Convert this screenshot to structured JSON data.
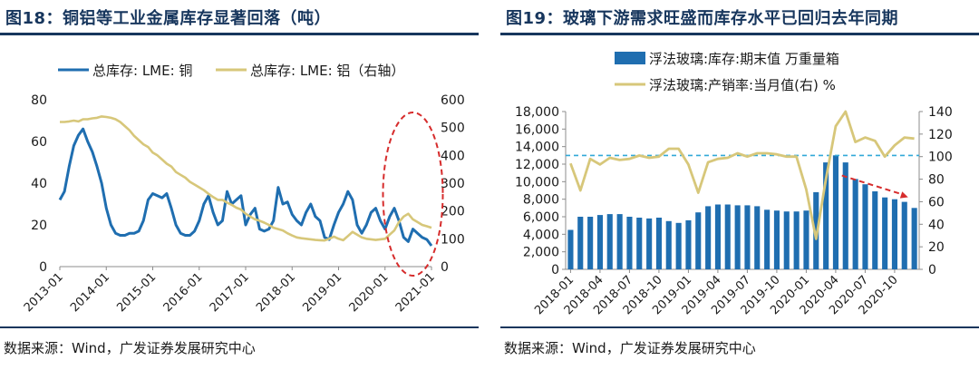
{
  "left": {
    "title": "图18：铜铝等工业金属库存显著回落（吨）",
    "source": "数据来源：Wind，广发证券发展研究中心"
  },
  "right": {
    "title": "图19：玻璃下游需求旺盛而库存水平已回归去年同期",
    "source": "数据来源：Wind，广发证券发展研究中心"
  },
  "colors": {
    "navy": "#17365d",
    "blue": "#1f6eb0",
    "gold": "#d7c77a",
    "red": "#d62c2c",
    "dash": "#31a9d8"
  },
  "chart_data": [
    {
      "type": "line",
      "title": "",
      "x_ticks": [
        "2013-01",
        "2014-01",
        "2015-01",
        "2016-01",
        "2017-01",
        "2018-01",
        "2019-01",
        "2020-01",
        "2021-01"
      ],
      "y_left": {
        "lim": [
          0,
          80
        ],
        "ticks": [
          "0",
          "20",
          "40",
          "60",
          "80"
        ]
      },
      "y_right": {
        "lim": [
          0,
          600
        ],
        "ticks": [
          "0",
          "100",
          "200",
          "300",
          "400",
          "500",
          "600"
        ]
      },
      "series": [
        {
          "name": "总库存: LME: 铜",
          "axis": "left",
          "x": [
            2013.0,
            2013.1,
            2013.2,
            2013.3,
            2013.4,
            2013.5,
            2013.6,
            2013.7,
            2013.8,
            2013.9,
            2014.0,
            2014.1,
            2014.2,
            2014.3,
            2014.4,
            2014.5,
            2014.6,
            2014.7,
            2014.8,
            2014.9,
            2015.0,
            2015.1,
            2015.2,
            2015.3,
            2015.4,
            2015.5,
            2015.6,
            2015.7,
            2015.8,
            2015.9,
            2016.0,
            2016.1,
            2016.2,
            2016.3,
            2016.4,
            2016.5,
            2016.6,
            2016.7,
            2016.8,
            2016.9,
            2017.0,
            2017.1,
            2017.2,
            2017.3,
            2017.4,
            2017.5,
            2017.6,
            2017.7,
            2017.8,
            2017.9,
            2018.0,
            2018.1,
            2018.2,
            2018.3,
            2018.4,
            2018.5,
            2018.6,
            2018.7,
            2018.8,
            2018.9,
            2019.0,
            2019.1,
            2019.2,
            2019.3,
            2019.4,
            2019.5,
            2019.6,
            2019.7,
            2019.8,
            2019.9,
            2020.0,
            2020.1,
            2020.2,
            2020.3,
            2020.4,
            2020.5,
            2020.6,
            2020.7,
            2020.8,
            2020.9,
            2021.0
          ],
          "y": [
            32,
            36,
            48,
            58,
            63,
            66,
            60,
            55,
            48,
            40,
            28,
            20,
            16,
            15,
            15,
            16,
            16,
            17,
            22,
            32,
            35,
            34,
            33,
            35,
            28,
            20,
            16,
            15,
            15,
            17,
            22,
            30,
            34,
            26,
            20,
            22,
            36,
            30,
            32,
            34,
            20,
            25,
            28,
            18,
            17,
            18,
            22,
            38,
            30,
            31,
            25,
            22,
            20,
            26,
            30,
            24,
            22,
            14,
            13,
            20,
            26,
            30,
            36,
            32,
            20,
            16,
            20,
            26,
            28,
            22,
            18,
            24,
            28,
            22,
            14,
            12,
            18,
            16,
            14,
            13,
            10
          ]
        },
        {
          "name": "总库存: LME: 铝（右轴）",
          "axis": "right",
          "x": [
            2013.0,
            2013.1,
            2013.2,
            2013.3,
            2013.4,
            2013.5,
            2013.6,
            2013.7,
            2013.8,
            2013.9,
            2014.0,
            2014.1,
            2014.2,
            2014.3,
            2014.4,
            2014.5,
            2014.6,
            2014.7,
            2014.8,
            2014.9,
            2015.0,
            2015.1,
            2015.2,
            2015.3,
            2015.4,
            2015.5,
            2015.6,
            2015.7,
            2015.8,
            2015.9,
            2016.0,
            2016.1,
            2016.2,
            2016.3,
            2016.4,
            2016.5,
            2016.6,
            2016.7,
            2016.8,
            2016.9,
            2017.0,
            2017.1,
            2017.2,
            2017.3,
            2017.4,
            2017.5,
            2017.6,
            2017.7,
            2017.8,
            2017.9,
            2018.0,
            2018.1,
            2018.2,
            2018.3,
            2018.4,
            2018.5,
            2018.6,
            2018.7,
            2018.8,
            2018.9,
            2019.0,
            2019.1,
            2019.2,
            2019.3,
            2019.4,
            2019.5,
            2019.6,
            2019.7,
            2019.8,
            2019.9,
            2020.0,
            2020.1,
            2020.2,
            2020.3,
            2020.4,
            2020.5,
            2020.6,
            2020.7,
            2020.8,
            2020.9,
            2021.0
          ],
          "y": [
            520,
            520,
            522,
            525,
            522,
            530,
            530,
            533,
            535,
            540,
            538,
            535,
            530,
            520,
            505,
            490,
            470,
            455,
            440,
            430,
            410,
            400,
            385,
            370,
            360,
            340,
            330,
            320,
            305,
            295,
            285,
            275,
            262,
            250,
            240,
            240,
            230,
            222,
            212,
            205,
            190,
            180,
            170,
            165,
            158,
            150,
            140,
            135,
            130,
            120,
            112,
            105,
            102,
            100,
            98,
            96,
            95,
            94,
            100,
            108,
            100,
            95,
            110,
            125,
            115,
            105,
            100,
            98,
            96,
            98,
            100,
            115,
            130,
            160,
            180,
            190,
            170,
            160,
            150,
            145,
            140
          ]
        }
      ],
      "annotation": "ellipse"
    },
    {
      "type": "bar+line",
      "title": "",
      "x_ticks": [
        "2018-01",
        "2018-04",
        "2018-07",
        "2018-10",
        "2019-01",
        "2019-04",
        "2019-07",
        "2019-10",
        "2020-01",
        "2020-04",
        "2020-07",
        "2020-10"
      ],
      "y_left": {
        "lim": [
          0,
          18000
        ],
        "ticks": [
          "0",
          "2,000",
          "4,000",
          "6,000",
          "8,000",
          "10,000",
          "12,000",
          "14,000",
          "16,000",
          "18,000"
        ]
      },
      "y_right": {
        "lim": [
          0,
          140
        ],
        "ticks": [
          "0",
          "20",
          "40",
          "60",
          "80",
          "100",
          "120",
          "140"
        ]
      },
      "categories": [
        "2018-01",
        "2018-02",
        "2018-03",
        "2018-04",
        "2018-05",
        "2018-06",
        "2018-07",
        "2018-08",
        "2018-09",
        "2018-10",
        "2018-11",
        "2018-12",
        "2019-01",
        "2019-02",
        "2019-03",
        "2019-04",
        "2019-05",
        "2019-06",
        "2019-07",
        "2019-08",
        "2019-09",
        "2019-10",
        "2019-11",
        "2019-12",
        "2020-01",
        "2020-02",
        "2020-03",
        "2020-04",
        "2020-05",
        "2020-06",
        "2020-07",
        "2020-08",
        "2020-09",
        "2020-10",
        "2020-11",
        "2020-12"
      ],
      "series": [
        {
          "name": "浮法玻璃:库存:期末值 万重量箱",
          "type": "bar",
          "axis": "left",
          "values": [
            4500,
            6000,
            6000,
            6200,
            6300,
            6300,
            6000,
            5900,
            5800,
            5900,
            5500,
            5300,
            5600,
            6500,
            7200,
            7400,
            7400,
            7300,
            7300,
            7200,
            6800,
            6700,
            6600,
            6600,
            6700,
            8800,
            12200,
            13000,
            12200,
            10300,
            9700,
            8900,
            8200,
            8000,
            7700,
            7000
          ]
        },
        {
          "name": "浮法玻璃:产销率:当月值(右) %",
          "type": "line",
          "axis": "right",
          "values": [
            94,
            70,
            98,
            93,
            99,
            97,
            98,
            101,
            99,
            100,
            107,
            107,
            93,
            68,
            95,
            98,
            99,
            103,
            100,
            103,
            103,
            102,
            100,
            100,
            71,
            27,
            80,
            127,
            140,
            113,
            117,
            114,
            100,
            110,
            117,
            116
          ]
        }
      ],
      "reference_line": 101,
      "annotation": "down-arrow"
    }
  ]
}
